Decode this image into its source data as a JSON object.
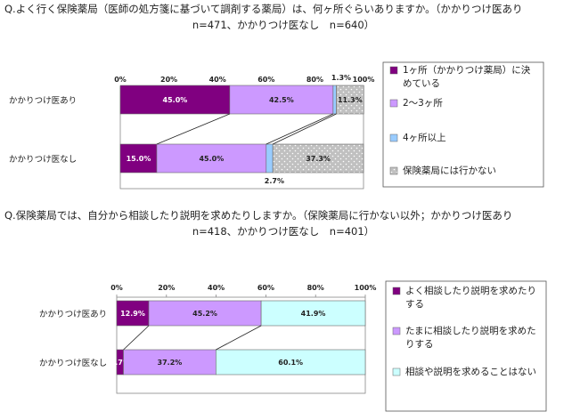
{
  "charts": [
    {
      "question_line1": "Q.よく行く保険薬局（医師の処方箋に基づいて調剤する薬局）は、何ヶ所ぐらいありますか。（かかりつけ医あり",
      "question_line2": "n=471、かかりつけ医なし　n=640）"
    },
    {
      "question_line1": "Q.保険薬局では、自分から相談したり説明を求めたりしますか。（保険薬局に行かない以外；かかりつけ医あり",
      "question_line2": "n=418、かかりつけ医なし　n=401）"
    }
  ],
  "chart_data": [
    {
      "type": "bar",
      "orientation": "horizontal",
      "stacked": "percent",
      "title": "Q.よく行く保険薬局（医師の処方箋に基づいて調剤する薬局）は、何ヶ所ぐらいありますか。（かかりつけ医あり n=471、かかりつけ医なし　n=640）",
      "categories": [
        "かかりつけ医あり",
        "かかりつけ医なし"
      ],
      "x_ticks": [
        "0%",
        "20%",
        "40%",
        "60%",
        "80%",
        "100%"
      ],
      "xlim": [
        0,
        100
      ],
      "legend_position": "right",
      "series": [
        {
          "name": "1ヶ所（かかりつけ薬局）に決めている",
          "values": [
            45.0,
            15.0
          ],
          "labels": [
            "45.0%",
            "15.0%"
          ],
          "color": "#800080"
        },
        {
          "name": "2～3ヶ所",
          "values": [
            42.5,
            45.0
          ],
          "labels": [
            "42.5%",
            "45.0%"
          ],
          "color": "#cc99ff"
        },
        {
          "name": "4ヶ所以上",
          "values": [
            1.3,
            2.7
          ],
          "labels": [
            "1.3%",
            "2.7%"
          ],
          "color": "#99ccff"
        },
        {
          "name": "保険薬局には行かない",
          "values": [
            11.3,
            37.3
          ],
          "labels": [
            "11.3%",
            "37.3%"
          ],
          "color": "#c0c0c0"
        }
      ]
    },
    {
      "type": "bar",
      "orientation": "horizontal",
      "stacked": "percent",
      "title": "Q.保険薬局では、自分から相談したり説明を求めたりしますか。（保険薬局に行かない以外；かかりつけ医あり n=418、かかりつけ医なし　n=401）",
      "categories": [
        "かかりつけ医あり",
        "かかりつけ医なし"
      ],
      "x_ticks": [
        "0%",
        "20%",
        "40%",
        "60%",
        "80%",
        "100%"
      ],
      "xlim": [
        0,
        100
      ],
      "legend_position": "right",
      "series": [
        {
          "name": "よく相談したり説明を求めたりする",
          "values": [
            12.9,
            2.7
          ],
          "labels": [
            "12.9%",
            "2.7%"
          ],
          "color": "#800080"
        },
        {
          "name": "たまに相談したり説明を求めたりする",
          "values": [
            45.2,
            37.2
          ],
          "labels": [
            "45.2%",
            "37.2%"
          ],
          "color": "#cc99ff"
        },
        {
          "name": "相談や説明を求めることはない",
          "values": [
            41.9,
            60.1
          ],
          "labels": [
            "41.9%",
            "60.1%"
          ],
          "color": "#ccffff"
        }
      ]
    }
  ]
}
